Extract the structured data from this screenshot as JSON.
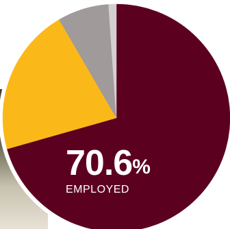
{
  "chart_data": {
    "type": "pie",
    "slices": [
      {
        "value": 70.6,
        "color": "#5c0020"
      },
      {
        "value": 21.0,
        "color": "#fbb819"
      },
      {
        "value": 7.3,
        "color": "#a09a9b"
      },
      {
        "value": 1.1,
        "color": "#d4d0d1"
      }
    ],
    "start_angle_deg": 0,
    "direction": "clockwise",
    "highlight": {
      "value": "70.6",
      "unit": "%",
      "label": "EMPLOYED"
    }
  },
  "colors": {
    "background": "#ffffff",
    "outline": "#ffffff",
    "text": "#ffffff"
  }
}
